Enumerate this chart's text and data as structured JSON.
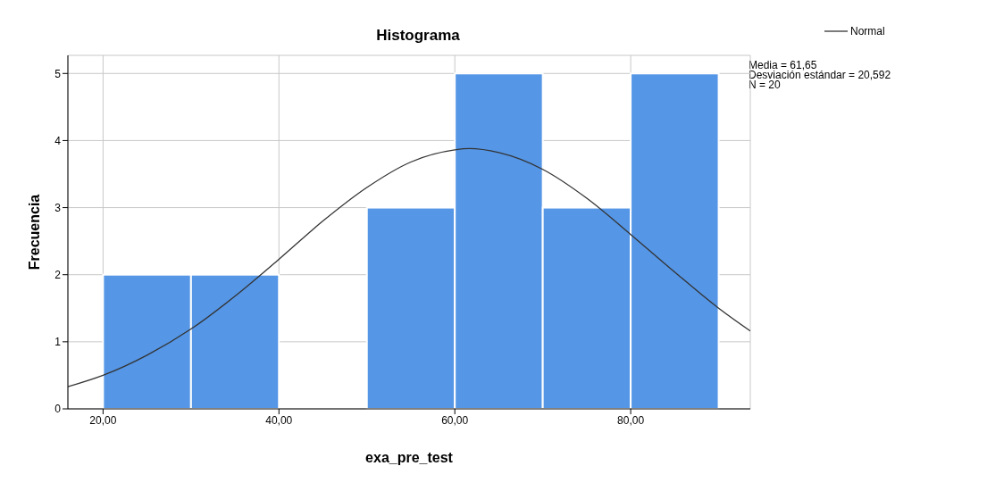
{
  "chart_data": {
    "type": "histogram",
    "title": "Histograma",
    "xlabel": "exa_pre_test",
    "ylabel": "Frecuencia",
    "bins": [
      20,
      30,
      40,
      50,
      60,
      70,
      80,
      90
    ],
    "values": [
      2,
      2,
      0,
      3,
      5,
      3,
      5
    ],
    "color": "#5596e6",
    "series": [
      {
        "name": "Normal",
        "type": "line",
        "color": "#333333",
        "x": [
          16,
          20,
          25,
          30,
          35,
          40,
          45,
          50,
          55,
          60,
          61.65,
          65,
          70,
          75,
          80,
          85,
          90,
          93.6
        ],
        "values": [
          0.33,
          0.5,
          0.8,
          1.19,
          1.68,
          2.23,
          2.8,
          3.3,
          3.68,
          3.86,
          3.88,
          3.82,
          3.57,
          3.14,
          2.6,
          2.04,
          1.5,
          1.16
        ]
      }
    ],
    "xlim": [
      16,
      93.6
    ],
    "ylim": [
      0,
      5.27
    ],
    "xticks": [
      {
        "value": 20,
        "label": "20,00"
      },
      {
        "value": 40,
        "label": "40,00"
      },
      {
        "value": 60,
        "label": "60,00"
      },
      {
        "value": 80,
        "label": "80,00"
      }
    ],
    "yticks": [
      0,
      1,
      2,
      3,
      4,
      5
    ],
    "grid": true,
    "legend": "top right",
    "marker": "none",
    "line_style": "solid",
    "annotations": [
      "Media = 61,65",
      "Desviación estándar = 20,592",
      "N = 20"
    ]
  }
}
